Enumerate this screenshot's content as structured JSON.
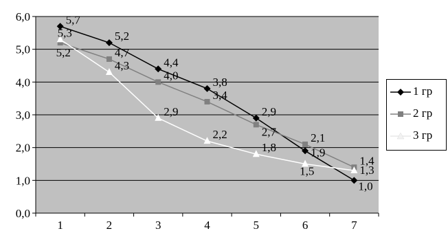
{
  "chart_data": {
    "type": "line",
    "categories": [
      "1",
      "2",
      "3",
      "4",
      "5",
      "6",
      "7"
    ],
    "ylim": [
      0,
      6
    ],
    "yticks": [
      "0,0",
      "1,0",
      "2,0",
      "3,0",
      "4,0",
      "5,0",
      "6,0"
    ],
    "grid": "horizontal",
    "legend": "right",
    "plot_background": "#c0c0c0",
    "series": [
      {
        "name": "1 гр",
        "color": "#000000",
        "marker": "diamond",
        "values": [
          5.7,
          5.2,
          4.4,
          3.8,
          2.9,
          1.9,
          1.0
        ],
        "labels": [
          "5,7",
          "5,2",
          "4,4",
          "3,8",
          "2,9",
          "1,9",
          "1,0"
        ]
      },
      {
        "name": "2 гр",
        "color": "#808080",
        "marker": "square",
        "values": [
          5.2,
          4.7,
          4.0,
          3.4,
          2.7,
          2.1,
          1.4
        ],
        "labels": [
          "5,2",
          "4,7",
          "4,0",
          "3,4",
          "2,7",
          "2,1",
          "1,4"
        ]
      },
      {
        "name": "3 гр",
        "color": "#ffffff",
        "marker": "triangle",
        "values": [
          5.3,
          4.3,
          2.9,
          2.2,
          1.8,
          1.5,
          1.3
        ],
        "labels": [
          "5,3",
          "4,3",
          "2,9",
          "2,2",
          "1,8",
          "1,5",
          "1,3"
        ]
      }
    ]
  }
}
